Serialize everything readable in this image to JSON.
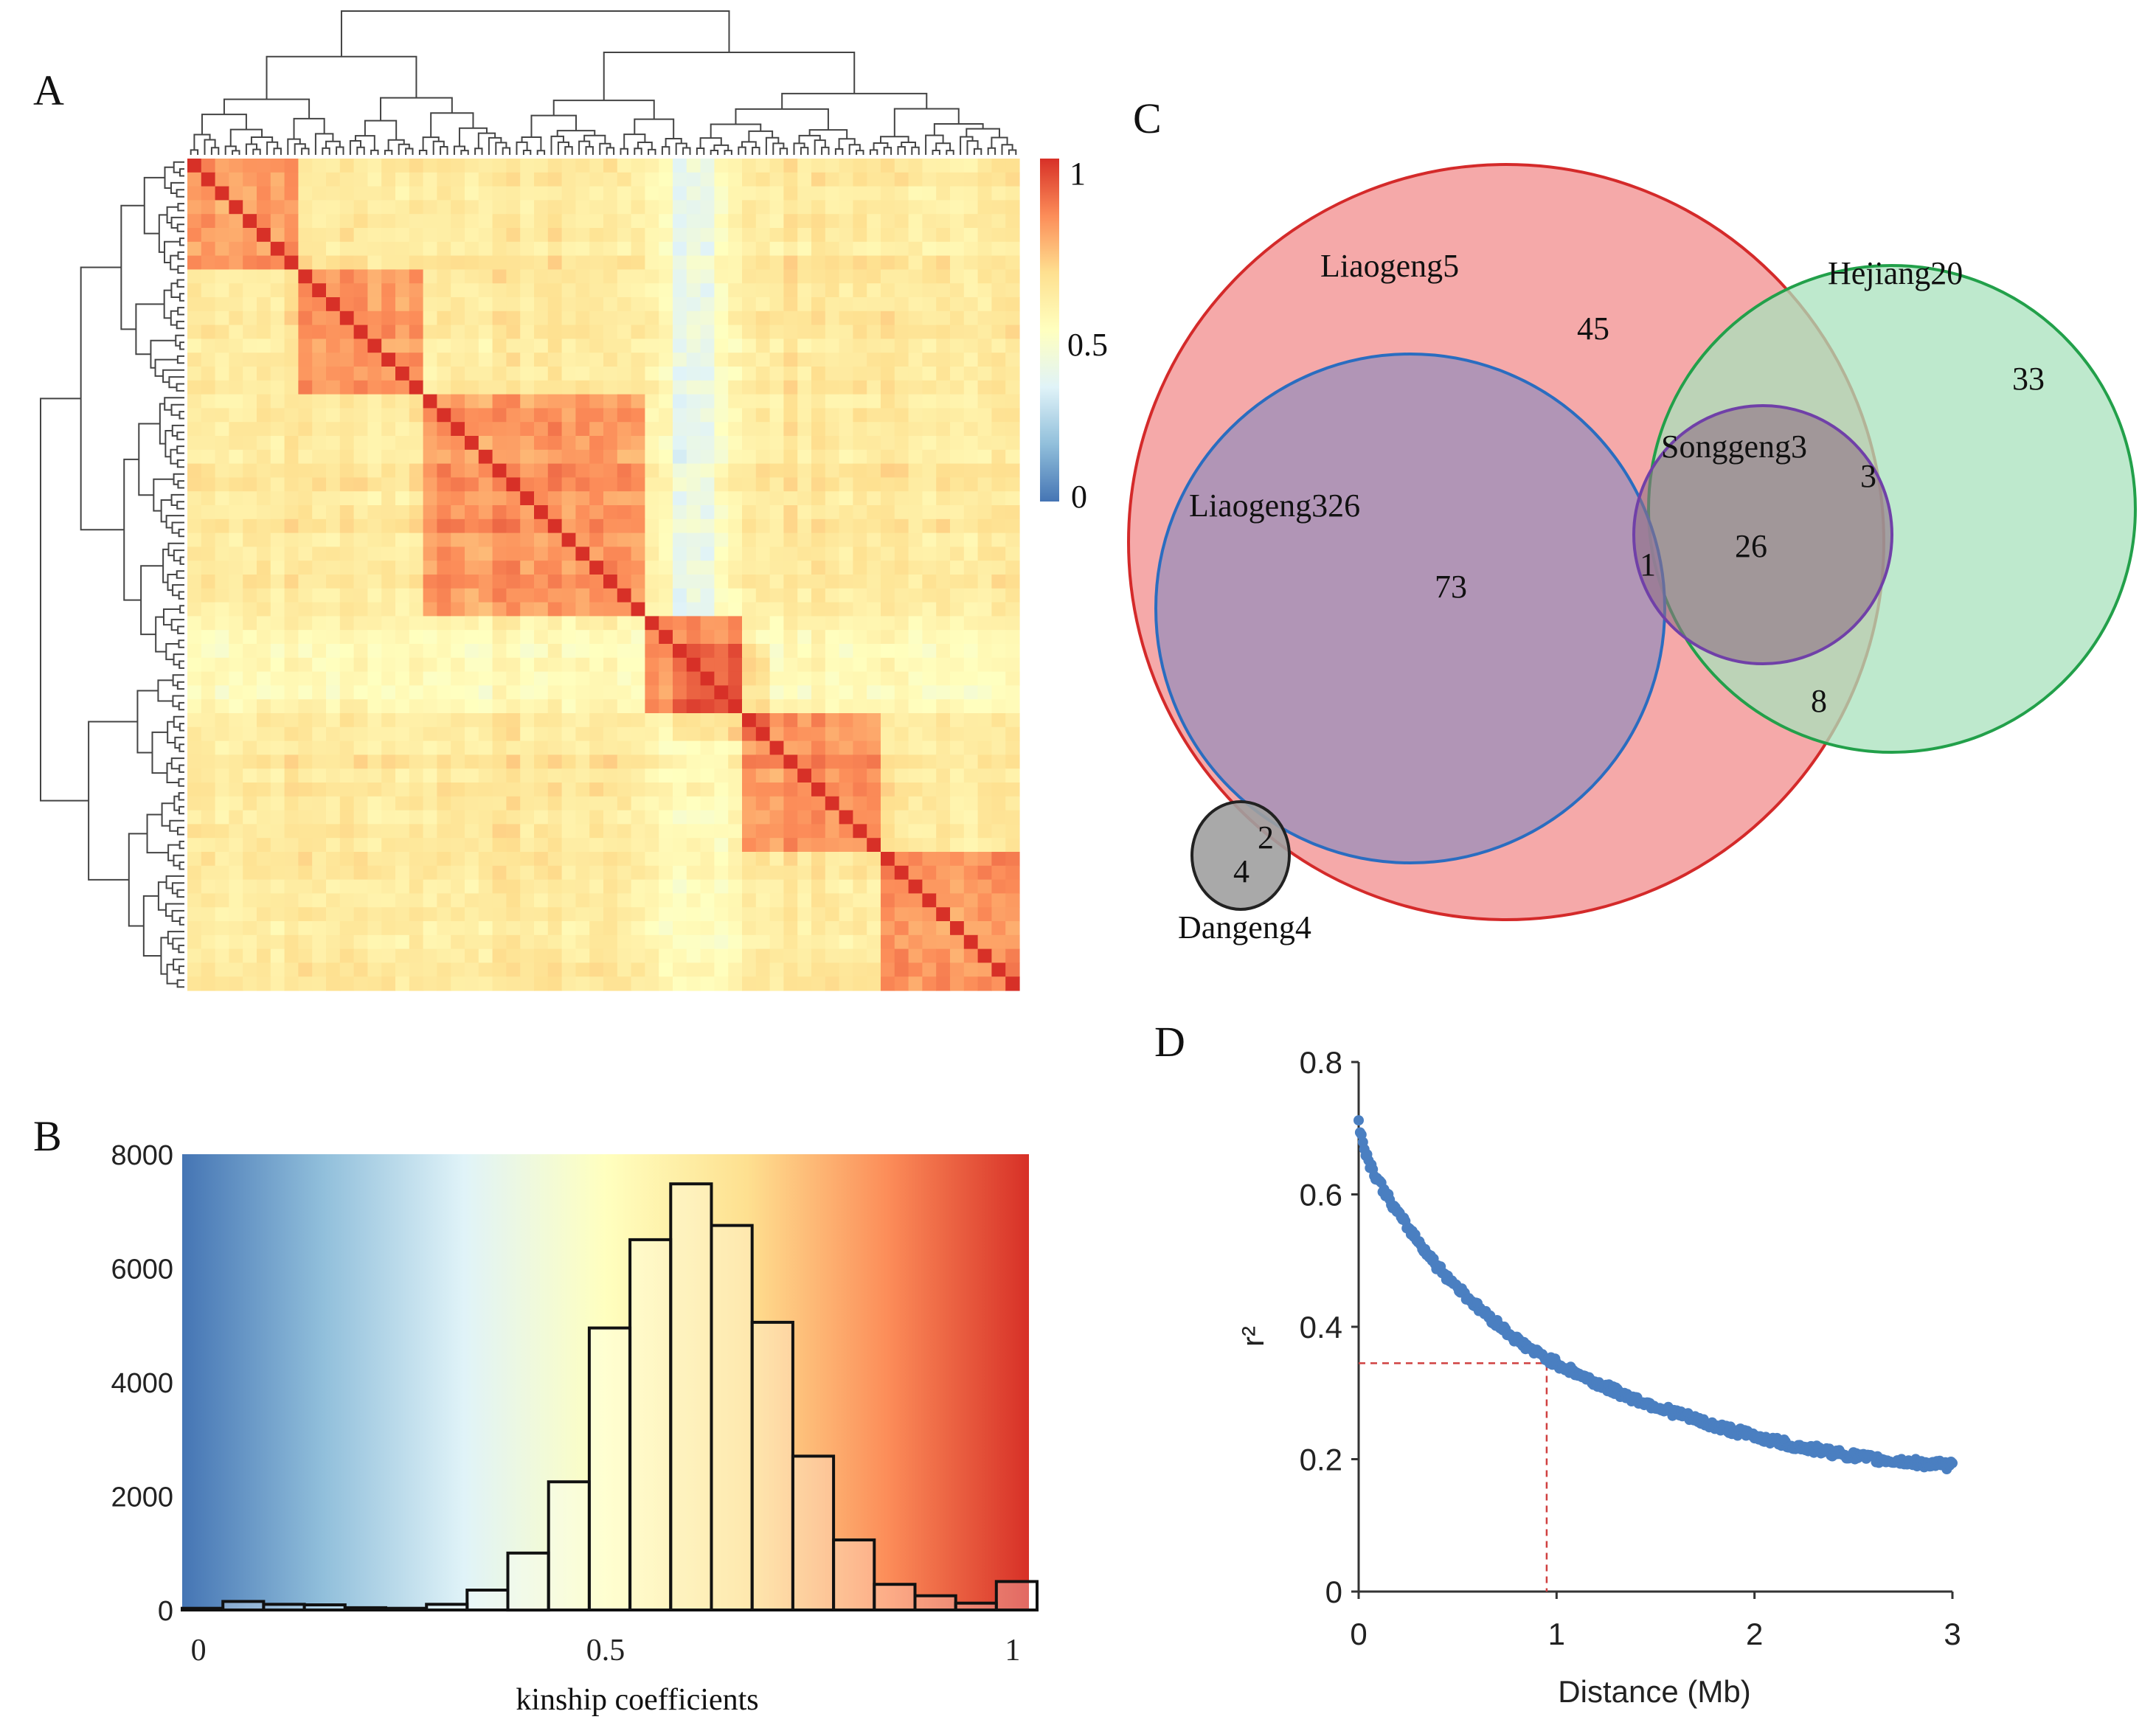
{
  "panels": {
    "A": {
      "label": "A",
      "colorbar": {
        "ticks": [
          "1",
          "0.5",
          "0"
        ],
        "colors": [
          "#d73027",
          "#fc8d59",
          "#fee090",
          "#ffffbf",
          "#e0f3f8",
          "#91bfdb",
          "#4575b4"
        ]
      }
    },
    "B": {
      "label": "B"
    },
    "C": {
      "label": "C"
    },
    "D": {
      "label": "D"
    }
  },
  "chart_data": [
    {
      "panel": "B",
      "type": "bar",
      "title": "",
      "xlabel": "kinship coefficients",
      "ylabel": "",
      "xlim": [
        -0.02,
        1.02
      ],
      "ylim": [
        0,
        8000
      ],
      "yticks": [
        "0",
        "2000",
        "4000",
        "6000",
        "8000"
      ],
      "xticks": [
        "0",
        "0.5",
        "1"
      ],
      "bin_width": 0.05,
      "bin_starts": [
        -0.02,
        0.03,
        0.08,
        0.13,
        0.18,
        0.23,
        0.28,
        0.33,
        0.38,
        0.43,
        0.48,
        0.53,
        0.58,
        0.63,
        0.68,
        0.73,
        0.78,
        0.83,
        0.88,
        0.93,
        0.98
      ],
      "values": [
        30,
        150,
        100,
        90,
        40,
        30,
        100,
        350,
        1000,
        2250,
        4950,
        6500,
        7480,
        6750,
        5050,
        2700,
        1230,
        450,
        250,
        120,
        500
      ]
    },
    {
      "panel": "D",
      "type": "scatter",
      "title": "",
      "xlabel": "Distance (Mb)",
      "ylabel": "r²",
      "xlim": [
        0,
        3
      ],
      "ylim": [
        0,
        0.8
      ],
      "xticks": [
        "0",
        "1",
        "2",
        "3"
      ],
      "yticks": [
        "0",
        "0.2",
        "0.4",
        "0.6",
        "0.8"
      ],
      "curve_points": [
        [
          0.0,
          0.71
        ],
        [
          0.02,
          0.68
        ],
        [
          0.05,
          0.65
        ],
        [
          0.1,
          0.62
        ],
        [
          0.2,
          0.57
        ],
        [
          0.3,
          0.53
        ],
        [
          0.4,
          0.49
        ],
        [
          0.5,
          0.46
        ],
        [
          0.6,
          0.43
        ],
        [
          0.7,
          0.405
        ],
        [
          0.8,
          0.38
        ],
        [
          0.9,
          0.36
        ],
        [
          1.0,
          0.345
        ],
        [
          1.2,
          0.315
        ],
        [
          1.4,
          0.29
        ],
        [
          1.6,
          0.27
        ],
        [
          1.8,
          0.25
        ],
        [
          2.0,
          0.235
        ],
        [
          2.2,
          0.22
        ],
        [
          2.4,
          0.21
        ],
        [
          2.6,
          0.2
        ],
        [
          2.8,
          0.195
        ],
        [
          3.0,
          0.19
        ]
      ],
      "threshold": {
        "x": 0.95,
        "y": 0.345
      }
    }
  ],
  "venn": {
    "sets": [
      {
        "name": "Liaogeng5",
        "color": "#f4a0a0",
        "stroke": "#d42a2a"
      },
      {
        "name": "Hejiang20",
        "color": "#a8e2bc",
        "stroke": "#22a04a"
      },
      {
        "name": "Liaogeng326",
        "color": "#a492b8",
        "stroke": "#2a6dc0"
      },
      {
        "name": "Songgeng3",
        "color": "#9a7f90",
        "stroke": "#7040a8"
      },
      {
        "name": "Dangeng4",
        "color": "#a0a0a0",
        "stroke": "#222222"
      }
    ],
    "counts": [
      "45",
      "33",
      "73",
      "3",
      "1",
      "26",
      "8",
      "2",
      "4"
    ]
  }
}
